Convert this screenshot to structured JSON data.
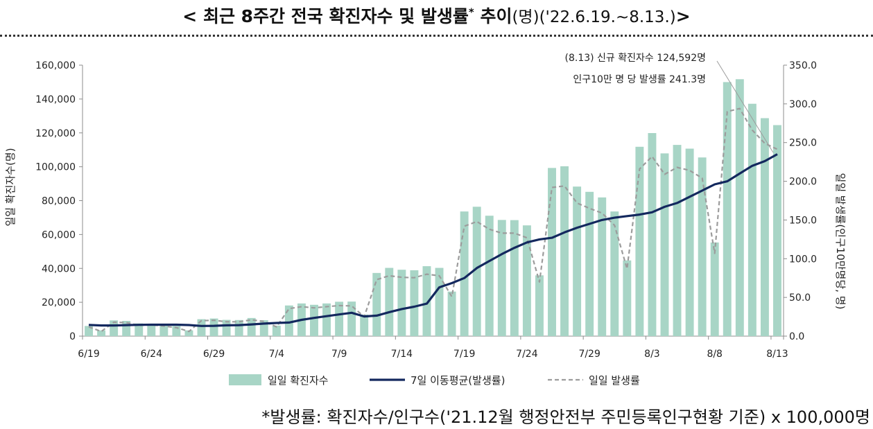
{
  "title": {
    "main": "< 최근 8주간 전국 확진자수 및 발생률",
    "sup": "*",
    "main2": " 추이",
    "unit": "(명)",
    "period": "('22.6.19.~8.13.)",
    "close": ">"
  },
  "footnote": "*발생률: 확진자수/인구수('21.12월 행정안전부 주민등록인구현황 기준) x 100,000명",
  "chart_data": {
    "type": "bar",
    "title": "최근 8주간 전국 확진자수 및 발생률 추이",
    "xlabel": "",
    "ylabel": "일일 확진자수(명)",
    "y2label": "일일 발생률(인구10만명당, 명)",
    "ylim": [
      0,
      160000
    ],
    "y2lim": [
      0,
      350
    ],
    "grid": false,
    "legend_position": "bottom",
    "yticks": [
      "0",
      "20,000",
      "40,000",
      "60,000",
      "80,000",
      "100,000",
      "120,000",
      "140,000",
      "160,000"
    ],
    "y2ticks": [
      "0.0",
      "50.0",
      "100.0",
      "150.0",
      "200.0",
      "250.0",
      "300.0",
      "350.0"
    ],
    "x_tick_labels": [
      "6/19",
      "6/24",
      "6/29",
      "7/4",
      "7/9",
      "7/14",
      "7/19",
      "7/24",
      "7/29",
      "8/3",
      "8/8",
      "8/13"
    ],
    "categories": [
      "6/19",
      "6/20",
      "6/21",
      "6/22",
      "6/23",
      "6/24",
      "6/25",
      "6/26",
      "6/27",
      "6/28",
      "6/29",
      "6/30",
      "7/1",
      "7/2",
      "7/3",
      "7/4",
      "7/5",
      "7/6",
      "7/7",
      "7/8",
      "7/9",
      "7/10",
      "7/11",
      "7/12",
      "7/13",
      "7/14",
      "7/15",
      "7/16",
      "7/17",
      "7/18",
      "7/19",
      "7/20",
      "7/21",
      "7/22",
      "7/23",
      "7/24",
      "7/25",
      "7/26",
      "7/27",
      "7/28",
      "7/29",
      "7/30",
      "7/31",
      "8/1",
      "8/2",
      "8/3",
      "8/4",
      "8/5",
      "8/6",
      "8/7",
      "8/8",
      "8/9",
      "8/10",
      "8/11",
      "8/12",
      "8/13"
    ],
    "series": [
      {
        "name": "일일 확진자수",
        "type": "bar",
        "axis": "left",
        "color": "#a8d5c6",
        "values": [
          6000,
          3400,
          9300,
          9000,
          7500,
          7200,
          6800,
          6000,
          3400,
          10000,
          10400,
          9600,
          9500,
          10700,
          9400,
          6200,
          18100,
          19300,
          18500,
          19300,
          20300,
          20400,
          12700,
          37300,
          40300,
          39200,
          38900,
          41300,
          40300,
          26300,
          73600,
          76400,
          71100,
          68600,
          68500,
          65400,
          35900,
          99300,
          100300,
          88300,
          85200,
          81900,
          73600,
          44700,
          111800,
          119900,
          107900,
          112900,
          110700,
          105500,
          55300,
          150000,
          151700,
          137200,
          128700,
          124592
        ]
      },
      {
        "name": "7일 이동평균(발생률)",
        "type": "line",
        "axis": "right",
        "color": "#13285e",
        "values": [
          14.5,
          13.8,
          13.8,
          14.2,
          14.6,
          14.8,
          14.8,
          14.8,
          14.3,
          13.2,
          13.3,
          14.0,
          14.2,
          15.1,
          16.2,
          17.0,
          17.5,
          21.0,
          23.5,
          25.8,
          28.0,
          30.2,
          25.4,
          26.5,
          31.0,
          35.0,
          38.0,
          42.0,
          63.0,
          68.5,
          75.0,
          88.0,
          97.0,
          106.0,
          114.0,
          121.0,
          125.0,
          127.0,
          134.0,
          140.0,
          145.0,
          150.0,
          153.0,
          155.0,
          157.0,
          160.0,
          167.0,
          172.0,
          180.0,
          188.0,
          196.0,
          200.0,
          210.0,
          220.0,
          226.0,
          235.0
        ]
      },
      {
        "name": "일일 발생률",
        "type": "line",
        "axis": "right",
        "dashed": true,
        "color": "#9c9c9c",
        "values": [
          12.0,
          6.0,
          18.0,
          17.5,
          14.0,
          14.5,
          13.0,
          11.0,
          6.0,
          20.0,
          20.5,
          18.5,
          18.5,
          21.0,
          19.0,
          12.0,
          35.5,
          38.0,
          36.5,
          38.0,
          39.5,
          39.0,
          25.0,
          73.0,
          78.0,
          76.0,
          75.5,
          80.0,
          78.0,
          51.0,
          142.0,
          148.0,
          138.0,
          133.0,
          133.0,
          127.0,
          70.0,
          192.0,
          194.0,
          172.0,
          165.0,
          159.0,
          143.0,
          87.0,
          216.0,
          232.0,
          209.0,
          218.0,
          214.0,
          204.0,
          107.0,
          290.0,
          294.0,
          266.0,
          249.0,
          241.3
        ]
      }
    ],
    "annotation": {
      "line1": "(8.13) 신규 확진자수 124,592명",
      "line2": "인구10만 명 당 발생률 241.3명"
    }
  }
}
